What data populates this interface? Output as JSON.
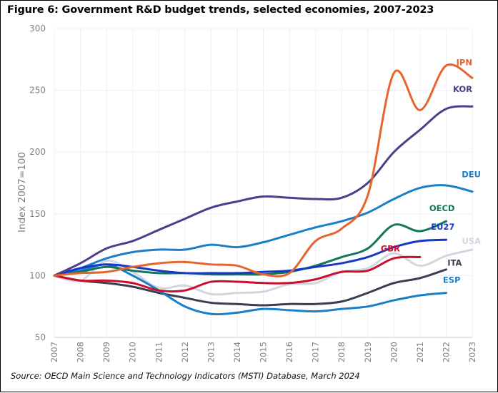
{
  "title": "Figure 6: Government R&D budget trends, selected economies, 2007-2023",
  "source": "Source: OECD Main Science and Technology Indicators (MSTI) Database, March 2024",
  "chart_data": {
    "type": "line",
    "title": "Figure 6: Government R&D budget trends, selected economies, 2007-2023",
    "xlabel": "",
    "ylabel": "Index 2007=100",
    "x": [
      2007,
      2008,
      2009,
      2010,
      2011,
      2012,
      2013,
      2014,
      2015,
      2016,
      2017,
      2018,
      2019,
      2020,
      2021,
      2022,
      2023
    ],
    "ylim": [
      50,
      300
    ],
    "yticks": [
      50,
      100,
      150,
      200,
      250,
      300
    ],
    "grid": true,
    "legend": "direct-labels-right",
    "series": [
      {
        "name": "JPN",
        "color": "#e8642c",
        "values": [
          100,
          102,
          103,
          107,
          110,
          111,
          109,
          108,
          101,
          102,
          128,
          138,
          165,
          264,
          234,
          270,
          260
        ]
      },
      {
        "name": "KOR",
        "color": "#4b3f8c",
        "values": [
          100,
          110,
          122,
          128,
          137,
          146,
          155,
          160,
          164,
          163,
          162,
          163,
          175,
          200,
          218,
          235,
          237
        ]
      },
      {
        "name": "DEU",
        "color": "#1a7fc9",
        "values": [
          100,
          106,
          114,
          119,
          121,
          121,
          125,
          123,
          127,
          133,
          139,
          144,
          151,
          162,
          171,
          173,
          168
        ]
      },
      {
        "name": "OECD",
        "color": "#12765a",
        "values": [
          100,
          103,
          107,
          104,
          102,
          102,
          101,
          101,
          101,
          103,
          108,
          115,
          122,
          141,
          136,
          144
        ]
      },
      {
        "name": "EU27",
        "color": "#1438c8",
        "values": [
          100,
          106,
          109,
          107,
          104,
          102,
          102,
          102,
          103,
          104,
          107,
          110,
          115,
          123,
          128,
          129
        ]
      },
      {
        "name": "USA",
        "color": "#d2d6e0",
        "values": [
          100,
          96,
          112,
          103,
          90,
          92,
          85,
          86,
          87,
          93,
          94,
          103,
          106,
          118,
          108,
          116,
          121
        ]
      },
      {
        "name": "GBR",
        "color": "#c8102e",
        "values": [
          100,
          96,
          96,
          94,
          88,
          88,
          95,
          95,
          94,
          94,
          97,
          103,
          104,
          114,
          115
        ]
      },
      {
        "name": "ITA",
        "color": "#3a3f4f",
        "values": [
          100,
          96,
          94,
          91,
          86,
          82,
          78,
          77,
          76,
          77,
          77,
          79,
          86,
          94,
          98,
          105
        ]
      },
      {
        "name": "ESP",
        "color": "#1a7fc9",
        "values": [
          100,
          104,
          109,
          100,
          88,
          75,
          69,
          70,
          73,
          72,
          71,
          73,
          75,
          80,
          84,
          86
        ]
      }
    ]
  }
}
